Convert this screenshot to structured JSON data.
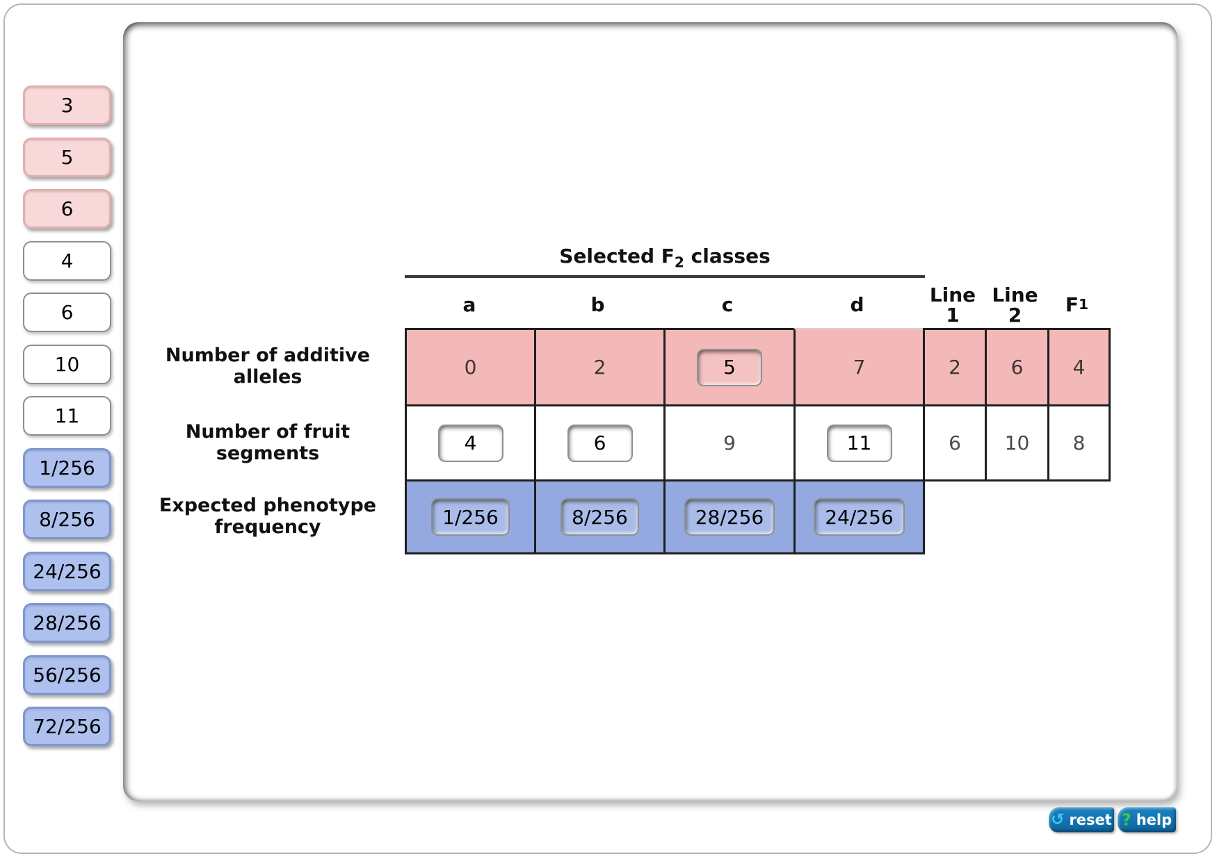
{
  "sidebar": {
    "tokens": [
      {
        "label": "3",
        "color": "pink"
      },
      {
        "label": "5",
        "color": "pink"
      },
      {
        "label": "6",
        "color": "pink"
      },
      {
        "label": "4",
        "color": "white"
      },
      {
        "label": "6",
        "color": "white"
      },
      {
        "label": "10",
        "color": "white"
      },
      {
        "label": "11",
        "color": "white"
      },
      {
        "label": "1/256",
        "color": "blue"
      },
      {
        "label": "8/256",
        "color": "blue"
      },
      {
        "label": "24/256",
        "color": "blue"
      },
      {
        "label": "28/256",
        "color": "blue"
      },
      {
        "label": "56/256",
        "color": "blue"
      },
      {
        "label": "72/256",
        "color": "blue"
      }
    ]
  },
  "table": {
    "title_main": "Selected F",
    "title_sub": "2",
    "title_suffix": " classes",
    "col_headers": {
      "a": "a",
      "b": "b",
      "c": "c",
      "d": "d",
      "line1_top": "Line",
      "line1_bottom": "1",
      "line2_top": "Line",
      "line2_bottom": "2",
      "f1_main": "F",
      "f1_sub": "1"
    },
    "rows": [
      {
        "label_line1": "Number of additive",
        "label_line2": "alleles",
        "cells": [
          {
            "value": "0",
            "kind": "static"
          },
          {
            "value": "2",
            "kind": "static"
          },
          {
            "value": "5",
            "kind": "token"
          },
          {
            "value": "7",
            "kind": "static"
          },
          {
            "value": "2",
            "kind": "static"
          },
          {
            "value": "6",
            "kind": "static"
          },
          {
            "value": "4",
            "kind": "static"
          }
        ]
      },
      {
        "label_line1": "Number of fruit",
        "label_line2": "segments",
        "cells": [
          {
            "value": "4",
            "kind": "token"
          },
          {
            "value": "6",
            "kind": "token"
          },
          {
            "value": "9",
            "kind": "static"
          },
          {
            "value": "11",
            "kind": "token"
          },
          {
            "value": "6",
            "kind": "static"
          },
          {
            "value": "10",
            "kind": "static"
          },
          {
            "value": "8",
            "kind": "static"
          }
        ]
      },
      {
        "label_line1": "Expected phenotype",
        "label_line2": "frequency",
        "cells": [
          {
            "value": "1/256",
            "kind": "token"
          },
          {
            "value": "8/256",
            "kind": "token"
          },
          {
            "value": "28/256",
            "kind": "token"
          },
          {
            "value": "24/256",
            "kind": "token"
          }
        ]
      }
    ]
  },
  "footer": {
    "reset_label": "reset",
    "reset_icon": "circular-arrow-icon",
    "reset_glyph": "↺",
    "help_label": "help",
    "help_icon": "question-mark-icon",
    "help_glyph": "?"
  },
  "colors": {
    "cell_pink": "#f3b9b9",
    "cell_blue": "#93a9e0",
    "tray_token_pink": "#f8d8d8",
    "tray_token_blue": "#adc0ee",
    "button_blue": "#0d6fad",
    "reset_icon_cyan": "#41c6f2",
    "help_icon_green": "#3ec553",
    "table_border": "#1f1f1f"
  }
}
